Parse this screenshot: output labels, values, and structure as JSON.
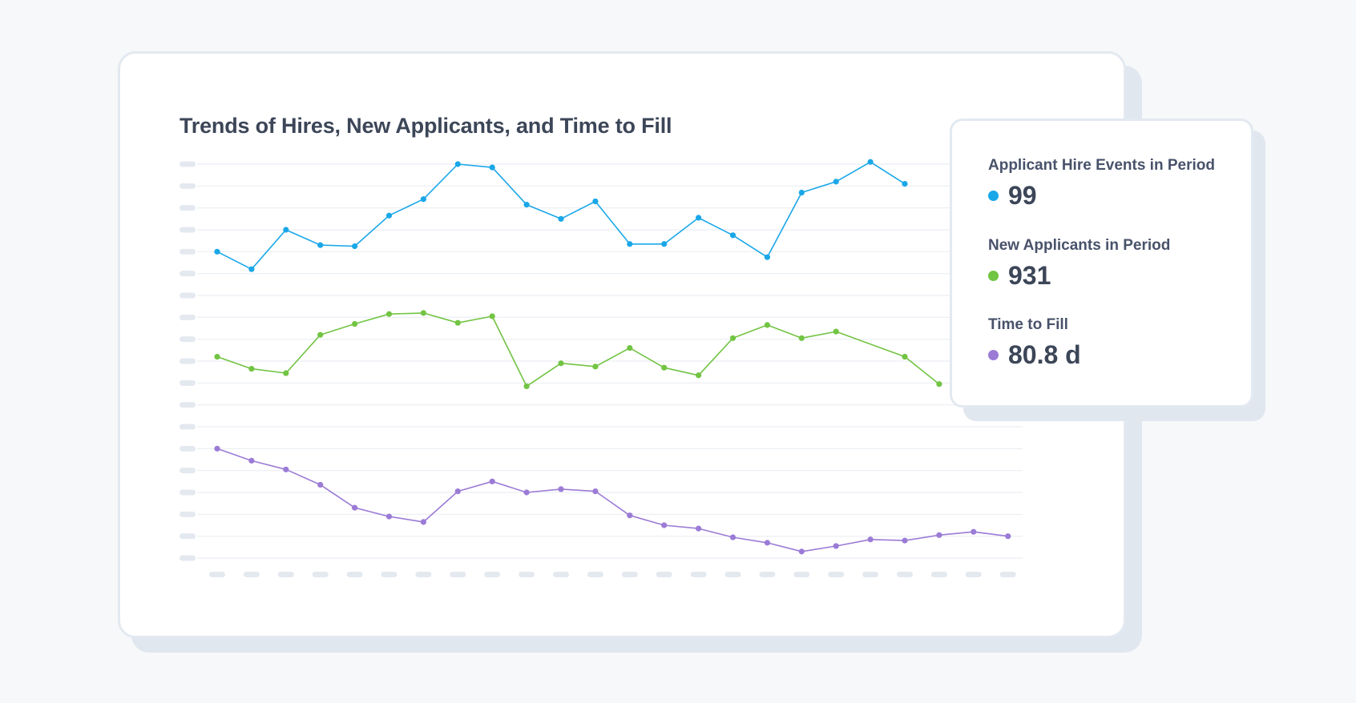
{
  "colors": {
    "background": "#f6f8fa",
    "hires": "#1aa7e8",
    "applicants": "#72c443",
    "time_to_fill": "#9b7bd6",
    "grid": "#e9eef3",
    "tick_placeholder": "#e4e9f0",
    "text": "#3c4658"
  },
  "chart_data": {
    "type": "line",
    "title": "Trends of Hires, New Applicants, and Time to Fill",
    "xlabel": "",
    "ylabel": "",
    "tick_labels_shown": false,
    "grid": true,
    "x": [
      1,
      2,
      3,
      4,
      5,
      6,
      7,
      8,
      9,
      10,
      11,
      12,
      13,
      14,
      15,
      16,
      17,
      18,
      19,
      20,
      21,
      22,
      23,
      24
    ],
    "ylim": [
      0,
      18
    ],
    "series": [
      {
        "key": "hires",
        "values": [
          14.0,
          13.2,
          15.0,
          14.3,
          14.25,
          15.65,
          16.4,
          18.0,
          17.85,
          16.15,
          15.5,
          16.3,
          14.35,
          14.35,
          15.55,
          14.75,
          13.75,
          16.7,
          17.2,
          18.1,
          17.1,
          null,
          null,
          null
        ],
        "visible_x": [
          1,
          2,
          3,
          4,
          5,
          6,
          7,
          8,
          9,
          10,
          11,
          12,
          13,
          14,
          15,
          16,
          17,
          18,
          19,
          20,
          21,
          22
        ]
      },
      {
        "key": "applicants",
        "values": [
          9.2,
          8.65,
          8.45,
          10.2,
          10.7,
          11.15,
          11.2,
          10.75,
          11.05,
          7.85,
          8.9,
          8.75,
          9.6,
          8.7,
          8.35,
          10.05,
          10.65,
          10.05,
          10.35,
          null,
          9.2,
          7.95,
          null,
          null
        ]
      },
      {
        "key": "time_to_fill",
        "values": [
          5.0,
          4.45,
          4.05,
          3.35,
          2.3,
          1.9,
          1.65,
          3.05,
          3.5,
          3.0,
          3.15,
          3.05,
          1.95,
          1.5,
          1.35,
          0.95,
          0.7,
          0.3,
          0.55,
          0.85,
          0.8,
          1.05,
          1.2,
          1.0
        ]
      }
    ]
  },
  "panel": {
    "metrics": [
      {
        "label": "Applicant Hire Events in Period",
        "value": "99",
        "color_key": "hires"
      },
      {
        "label": "New Applicants in Period",
        "value": "931",
        "color_key": "applicants"
      },
      {
        "label": "Time to Fill",
        "value": "80.8 d",
        "color_key": "time_to_fill"
      }
    ]
  }
}
